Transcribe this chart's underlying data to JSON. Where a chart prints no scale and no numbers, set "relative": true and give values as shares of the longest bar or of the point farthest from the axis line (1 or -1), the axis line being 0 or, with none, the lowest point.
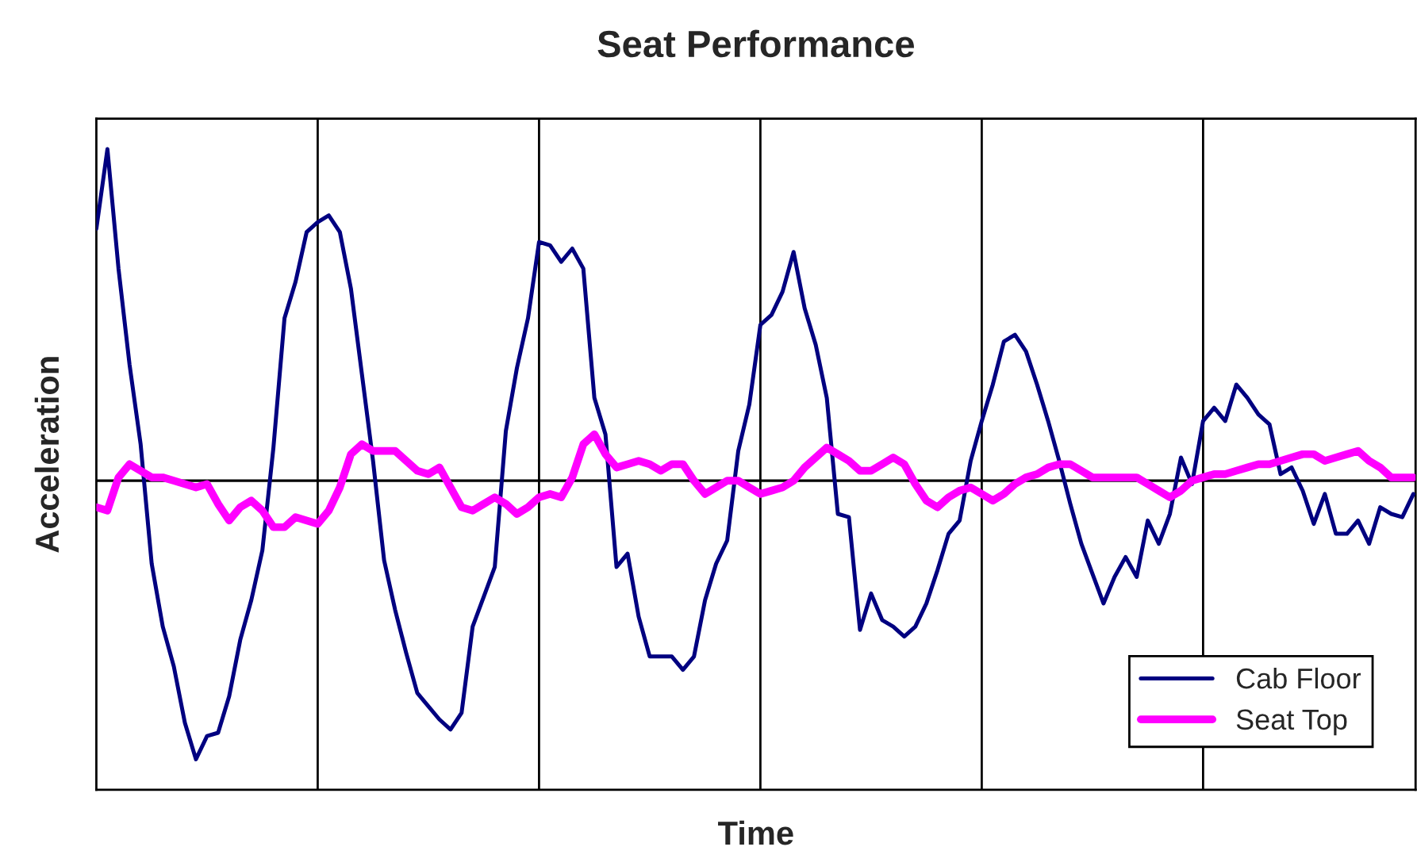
{
  "chart_data": {
    "type": "line",
    "title": "Seat Performance",
    "xlabel": "Time",
    "ylabel": "Acceleration",
    "relative": true,
    "categories": [
      null,
      null,
      null,
      null,
      null,
      null,
      null,
      null,
      null,
      null,
      null,
      null,
      null,
      null,
      null,
      null,
      null,
      null,
      null,
      null,
      null,
      null,
      null,
      null,
      null,
      null,
      null,
      null,
      null,
      null,
      null,
      null,
      null,
      null,
      null,
      null,
      null,
      null,
      null,
      null,
      null,
      null,
      null,
      null,
      null,
      null,
      null,
      null,
      null,
      null,
      null,
      null,
      null,
      null,
      null,
      null,
      null,
      null,
      null,
      null,
      null,
      null,
      null,
      null,
      null,
      null,
      null,
      null,
      null,
      null,
      null,
      null,
      null,
      null,
      null,
      null,
      null,
      null,
      null,
      null,
      null,
      null,
      null,
      null,
      null,
      null,
      null,
      null,
      null,
      null,
      null,
      null,
      null,
      null,
      null,
      null,
      null,
      null,
      null,
      null,
      null,
      null,
      null,
      null,
      null,
      null,
      null,
      null,
      null,
      null,
      null,
      null,
      null,
      null,
      null,
      null,
      null,
      null,
      null,
      null
    ],
    "tick_labels": false,
    "grid": "x",
    "legend": "bottom right",
    "marker": "none",
    "line_style": "solid",
    "series": [
      {
        "name": "Cab Floor",
        "color": "#000080",
        "values": [
          0.76,
          1.0,
          0.64,
          0.35,
          0.11,
          -0.25,
          -0.44,
          -0.56,
          -0.73,
          -0.84,
          -0.77,
          -0.76,
          -0.65,
          -0.48,
          -0.36,
          -0.21,
          0.1,
          0.49,
          0.6,
          0.75,
          0.78,
          0.8,
          0.75,
          0.58,
          0.32,
          0.06,
          -0.24,
          -0.39,
          -0.52,
          -0.64,
          -0.68,
          -0.72,
          -0.75,
          -0.7,
          -0.44,
          -0.35,
          -0.26,
          0.15,
          0.34,
          0.49,
          0.72,
          0.71,
          0.66,
          0.7,
          0.64,
          0.25,
          0.14,
          -0.26,
          -0.22,
          -0.41,
          -0.53,
          -0.53,
          -0.53,
          -0.57,
          -0.53,
          -0.36,
          -0.25,
          -0.18,
          0.09,
          0.23,
          0.47,
          0.5,
          0.57,
          0.69,
          0.52,
          0.41,
          0.25,
          -0.1,
          -0.11,
          -0.45,
          -0.34,
          -0.42,
          -0.44,
          -0.47,
          -0.44,
          -0.37,
          -0.27,
          -0.16,
          -0.12,
          0.06,
          0.18,
          0.29,
          0.42,
          0.44,
          0.39,
          0.29,
          0.18,
          0.06,
          -0.07,
          -0.19,
          -0.28,
          -0.37,
          -0.29,
          -0.23,
          -0.29,
          -0.12,
          -0.19,
          -0.1,
          0.07,
          -0.01,
          0.18,
          0.22,
          0.18,
          0.29,
          0.25,
          0.2,
          0.17,
          0.02,
          0.04,
          -0.03,
          -0.13,
          -0.04,
          -0.16,
          -0.16,
          -0.12,
          -0.19,
          -0.08,
          -0.1,
          -0.11,
          -0.04
        ]
      },
      {
        "name": "Seat Top",
        "color": "#ff00ff",
        "values": [
          -0.08,
          -0.09,
          0.01,
          0.05,
          0.03,
          0.01,
          0.01,
          0.0,
          -0.01,
          -0.02,
          -0.01,
          -0.07,
          -0.12,
          -0.08,
          -0.06,
          -0.09,
          -0.14,
          -0.14,
          -0.11,
          -0.12,
          -0.13,
          -0.09,
          -0.02,
          0.08,
          0.11,
          0.09,
          0.09,
          0.09,
          0.06,
          0.03,
          0.02,
          0.04,
          -0.02,
          -0.08,
          -0.09,
          -0.07,
          -0.05,
          -0.07,
          -0.1,
          -0.08,
          -0.05,
          -0.04,
          -0.05,
          0.01,
          0.11,
          0.14,
          0.08,
          0.04,
          0.05,
          0.06,
          0.05,
          0.03,
          0.05,
          0.05,
          0.0,
          -0.04,
          -0.02,
          0.0,
          0.0,
          -0.02,
          -0.04,
          -0.03,
          -0.02,
          0.0,
          0.04,
          0.07,
          0.1,
          0.08,
          0.06,
          0.03,
          0.03,
          0.05,
          0.07,
          0.05,
          -0.01,
          -0.06,
          -0.08,
          -0.05,
          -0.03,
          -0.02,
          -0.04,
          -0.06,
          -0.04,
          -0.01,
          0.01,
          0.02,
          0.04,
          0.05,
          0.05,
          0.03,
          0.01,
          0.01,
          0.01,
          0.01,
          0.01,
          -0.01,
          -0.03,
          -0.05,
          -0.03,
          0.0,
          0.01,
          0.02,
          0.02,
          0.03,
          0.04,
          0.05,
          0.05,
          0.06,
          0.07,
          0.08,
          0.08,
          0.06,
          0.07,
          0.08,
          0.09,
          0.06,
          0.04,
          0.01,
          0.01,
          0.01
        ]
      }
    ]
  }
}
